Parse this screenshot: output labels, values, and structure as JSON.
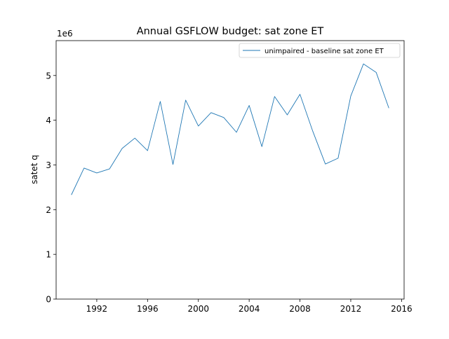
{
  "chart_data": {
    "type": "line",
    "title": "Annual GSFLOW budget: sat zone ET",
    "xlabel": "",
    "ylabel": "satet q",
    "y_offset_label": "1e6",
    "xlim": [
      1988.8,
      2016.2
    ],
    "ylim": [
      0,
      5.78
    ],
    "x_ticks": [
      1992,
      1996,
      2000,
      2004,
      2008,
      2012,
      2016
    ],
    "y_ticks": [
      0,
      1,
      2,
      3,
      4,
      5
    ],
    "grid": false,
    "legend_position": "top-right",
    "series": [
      {
        "name": "unimpaired - baseline sat zone ET",
        "color": "#1f77b4",
        "x": [
          1990,
          1991,
          1992,
          1993,
          1994,
          1995,
          1996,
          1997,
          1998,
          1999,
          2000,
          2001,
          2002,
          2003,
          2004,
          2005,
          2006,
          2007,
          2008,
          2009,
          2010,
          2011,
          2012,
          2013,
          2014,
          2015
        ],
        "values": [
          2.33,
          2.93,
          2.82,
          2.91,
          3.37,
          3.6,
          3.32,
          4.42,
          3.01,
          4.45,
          3.87,
          4.17,
          4.06,
          3.73,
          4.33,
          3.41,
          4.53,
          4.12,
          4.58,
          3.76,
          3.02,
          3.15,
          4.54,
          5.26,
          5.07,
          4.27
        ]
      }
    ]
  }
}
